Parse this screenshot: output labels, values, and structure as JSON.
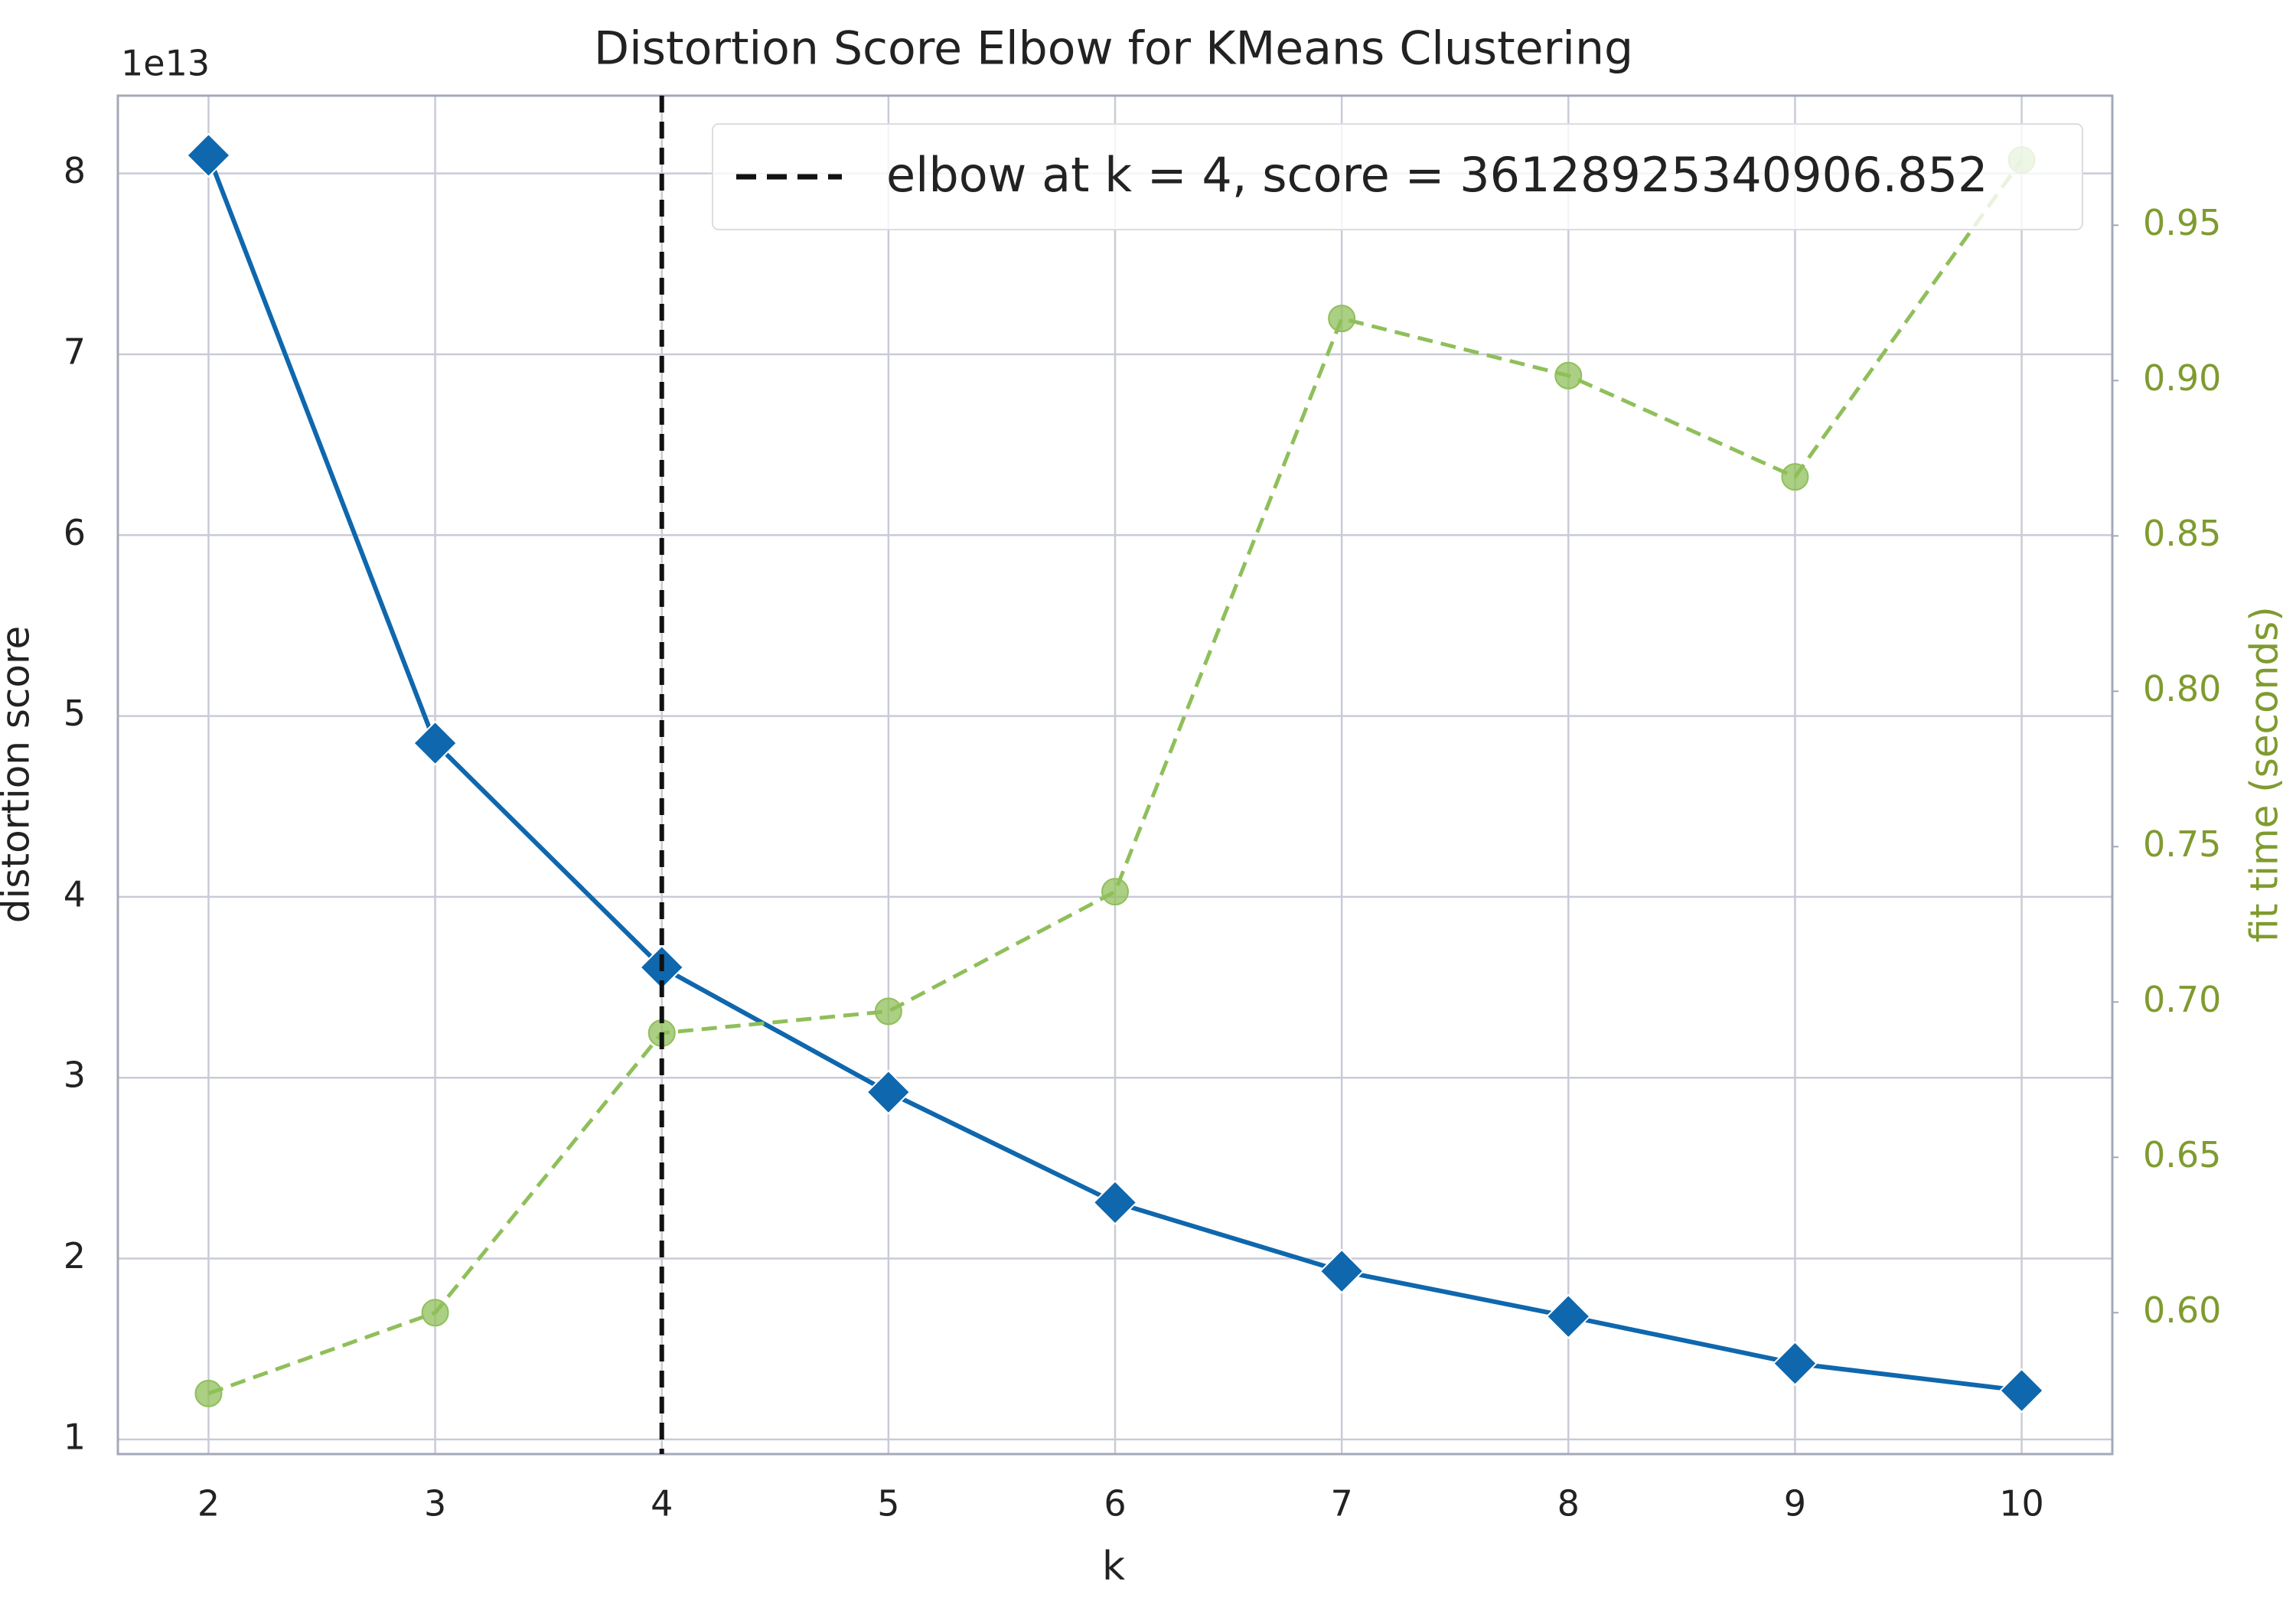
{
  "chart_data": {
    "type": "line",
    "title": "Distortion Score Elbow for KMeans Clustering",
    "xlabel": "k",
    "ylabel": "distortion score",
    "y2label": "fit time (seconds)",
    "y_offset_label": "1e13",
    "x": [
      2,
      3,
      4,
      5,
      6,
      7,
      8,
      9,
      10
    ],
    "series": [
      {
        "color": "#0f67ad",
        "marker": "diamond",
        "linestyle": "solid",
        "values": [
          8.1,
          4.85,
          3.61,
          2.92,
          2.31,
          1.93,
          1.68,
          1.42,
          1.27
        ]
      },
      {
        "color": "#8fbf5a",
        "marker": "circle",
        "linestyle": "dashed",
        "axis": "y2",
        "values": [
          0.574,
          0.6,
          0.69,
          0.697,
          0.7355,
          0.92,
          0.9016,
          0.869,
          0.971
        ]
      }
    ],
    "elbow": {
      "x": 4,
      "label": "elbow at k = 4, score = 36128925340906.852",
      "color": "#111111"
    },
    "xlim": [
      1.6,
      10.4
    ],
    "xticks": [
      2,
      3,
      4,
      5,
      6,
      7,
      8,
      9,
      10
    ],
    "ylim": [
      0.919,
      8.43
    ],
    "yticks": [
      1,
      2,
      3,
      4,
      5,
      6,
      7,
      8
    ],
    "y2lim": [
      0.5545,
      0.9917
    ],
    "y2ticks": [
      {
        "value": 0.6,
        "label": "0.60"
      },
      0.65,
      {
        "value": 0.7,
        "label": "0.70"
      },
      0.75,
      {
        "value": 0.8,
        "label": "0.80"
      },
      0.85,
      {
        "value": 0.9,
        "label": "0.90"
      },
      0.95
    ],
    "y2color": "#7f9b2f",
    "grid": true,
    "legend_position": "upper right"
  }
}
